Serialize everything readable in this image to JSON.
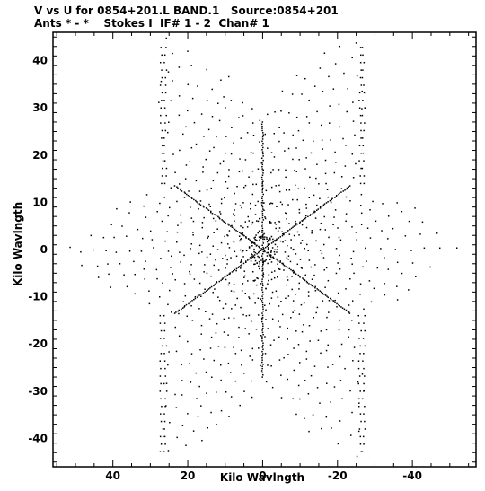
{
  "header": {
    "line1": "V vs U for 0854+201.L BAND.1   Source:0854+201",
    "line2": "Ants * - *    Stokes I  IF# 1 - 2  Chan# 1"
  },
  "chart_data": {
    "type": "scatter",
    "title": "V vs U for 0854+201.L BAND.1   Source:0854+201",
    "subtitle": "Ants * - *    Stokes I  IF# 1 - 2  Chan# 1",
    "xlabel": "Kilo Wavlngth",
    "ylabel": "Kilo Wavlngth",
    "xlim": [
      56,
      -57
    ],
    "ylim": [
      -46,
      46
    ],
    "x_reversed": true,
    "xticks": [
      40,
      20,
      0,
      -20,
      -40
    ],
    "xtick_labels": [
      "40",
      "20",
      "0",
      "-20",
      "-40"
    ],
    "yticks": [
      40,
      30,
      20,
      10,
      0,
      -10,
      -20,
      -30,
      -40
    ],
    "ytick_labels": [
      "40",
      "30",
      "20",
      "10",
      "0",
      "-10",
      "-20",
      "-30",
      "-40"
    ],
    "grid": false,
    "marker_color": "#000000",
    "pattern": "six-armed star (Y-shaped VLA array) uv-coverage; each baseline radial spoke is mirrored by its conjugate point (-u, -v)",
    "arms": [
      {
        "name": "arm-n",
        "tip": [
          0,
          27
        ]
      },
      {
        "name": "arm-s",
        "tip": [
          0,
          -27
        ]
      },
      {
        "name": "arm-ne",
        "tip": [
          -27,
          42
        ]
      },
      {
        "name": "arm-sw",
        "tip": [
          27,
          -42
        ]
      },
      {
        "name": "arm-nw",
        "tip": [
          27,
          43
        ]
      },
      {
        "name": "arm-se",
        "tip": [
          -27,
          -43
        ]
      },
      {
        "name": "arm-e",
        "tip": [
          -54,
          0
        ]
      },
      {
        "name": "arm-w",
        "tip": [
          54,
          0
        ]
      },
      {
        "name": "arm-ene",
        "tip": [
          -27,
          14
        ]
      },
      {
        "name": "arm-wsw",
        "tip": [
          27,
          -14
        ]
      },
      {
        "name": "arm-wnw",
        "tip": [
          27,
          15
        ]
      },
      {
        "name": "arm-ese",
        "tip": [
          -27,
          -15
        ]
      }
    ]
  }
}
